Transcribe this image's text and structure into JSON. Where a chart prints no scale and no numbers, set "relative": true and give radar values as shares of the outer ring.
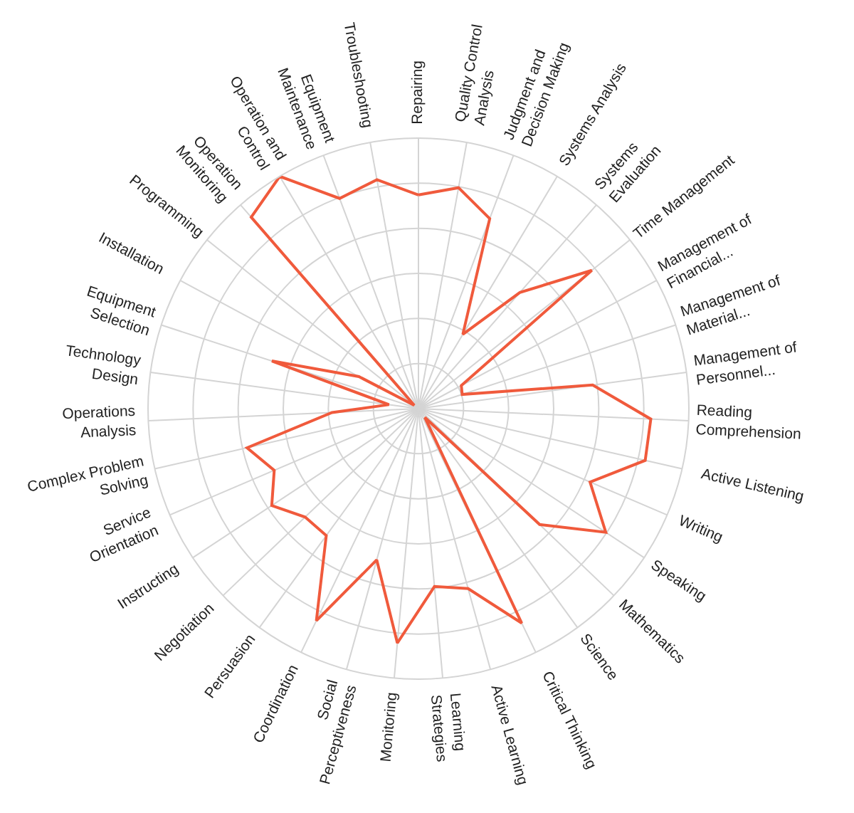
{
  "chart_data": {
    "type": "radar",
    "relative": true,
    "grid": true,
    "marker": "none",
    "line_style": "solid",
    "categories": [
      "Repairing",
      "Quality Control\nAnalysis",
      "Judgment and\nDecision Making",
      "Systems Analysis",
      "Systems\nEvaluation",
      "Time Management",
      "Management of\nFinancial...",
      "Management of\nMaterial...",
      "Management of\nPersonnel...",
      "Reading\nComprehension",
      "Active Listening",
      "Writing",
      "Speaking",
      "Mathematics",
      "Science",
      "Critical Thinking",
      "Active Learning",
      "Learning\nStrategies",
      "Monitoring",
      "Social\nPerceptiveness",
      "Coordination",
      "Persuasion",
      "Negotiation",
      "Instructing",
      "Service\nOrientation",
      "Complex Problem\nSolving",
      "Operations\nAnalysis",
      "Technology\nDesign",
      "Equipment\nSelection",
      "Installation",
      "Programming",
      "Operation\nMonitoring",
      "Operation and\nControl",
      "Equipment\nMaintenance",
      "Troubleshooting"
    ],
    "series": [
      {
        "color": "#f05a3c",
        "values": [
          0.79,
          0.83,
          0.75,
          0.32,
          0.57,
          0.82,
          0.18,
          0.17,
          0.65,
          0.86,
          0.86,
          0.69,
          0.83,
          0.62,
          0.04,
          0.88,
          0.69,
          0.66,
          0.87,
          0.58,
          0.87,
          0.58,
          0.58,
          0.65,
          0.58,
          0.65,
          0.32,
          0.11,
          0.57,
          0.25,
          0.02,
          0.94,
          1.0,
          0.83,
          0.86
        ]
      }
    ]
  }
}
